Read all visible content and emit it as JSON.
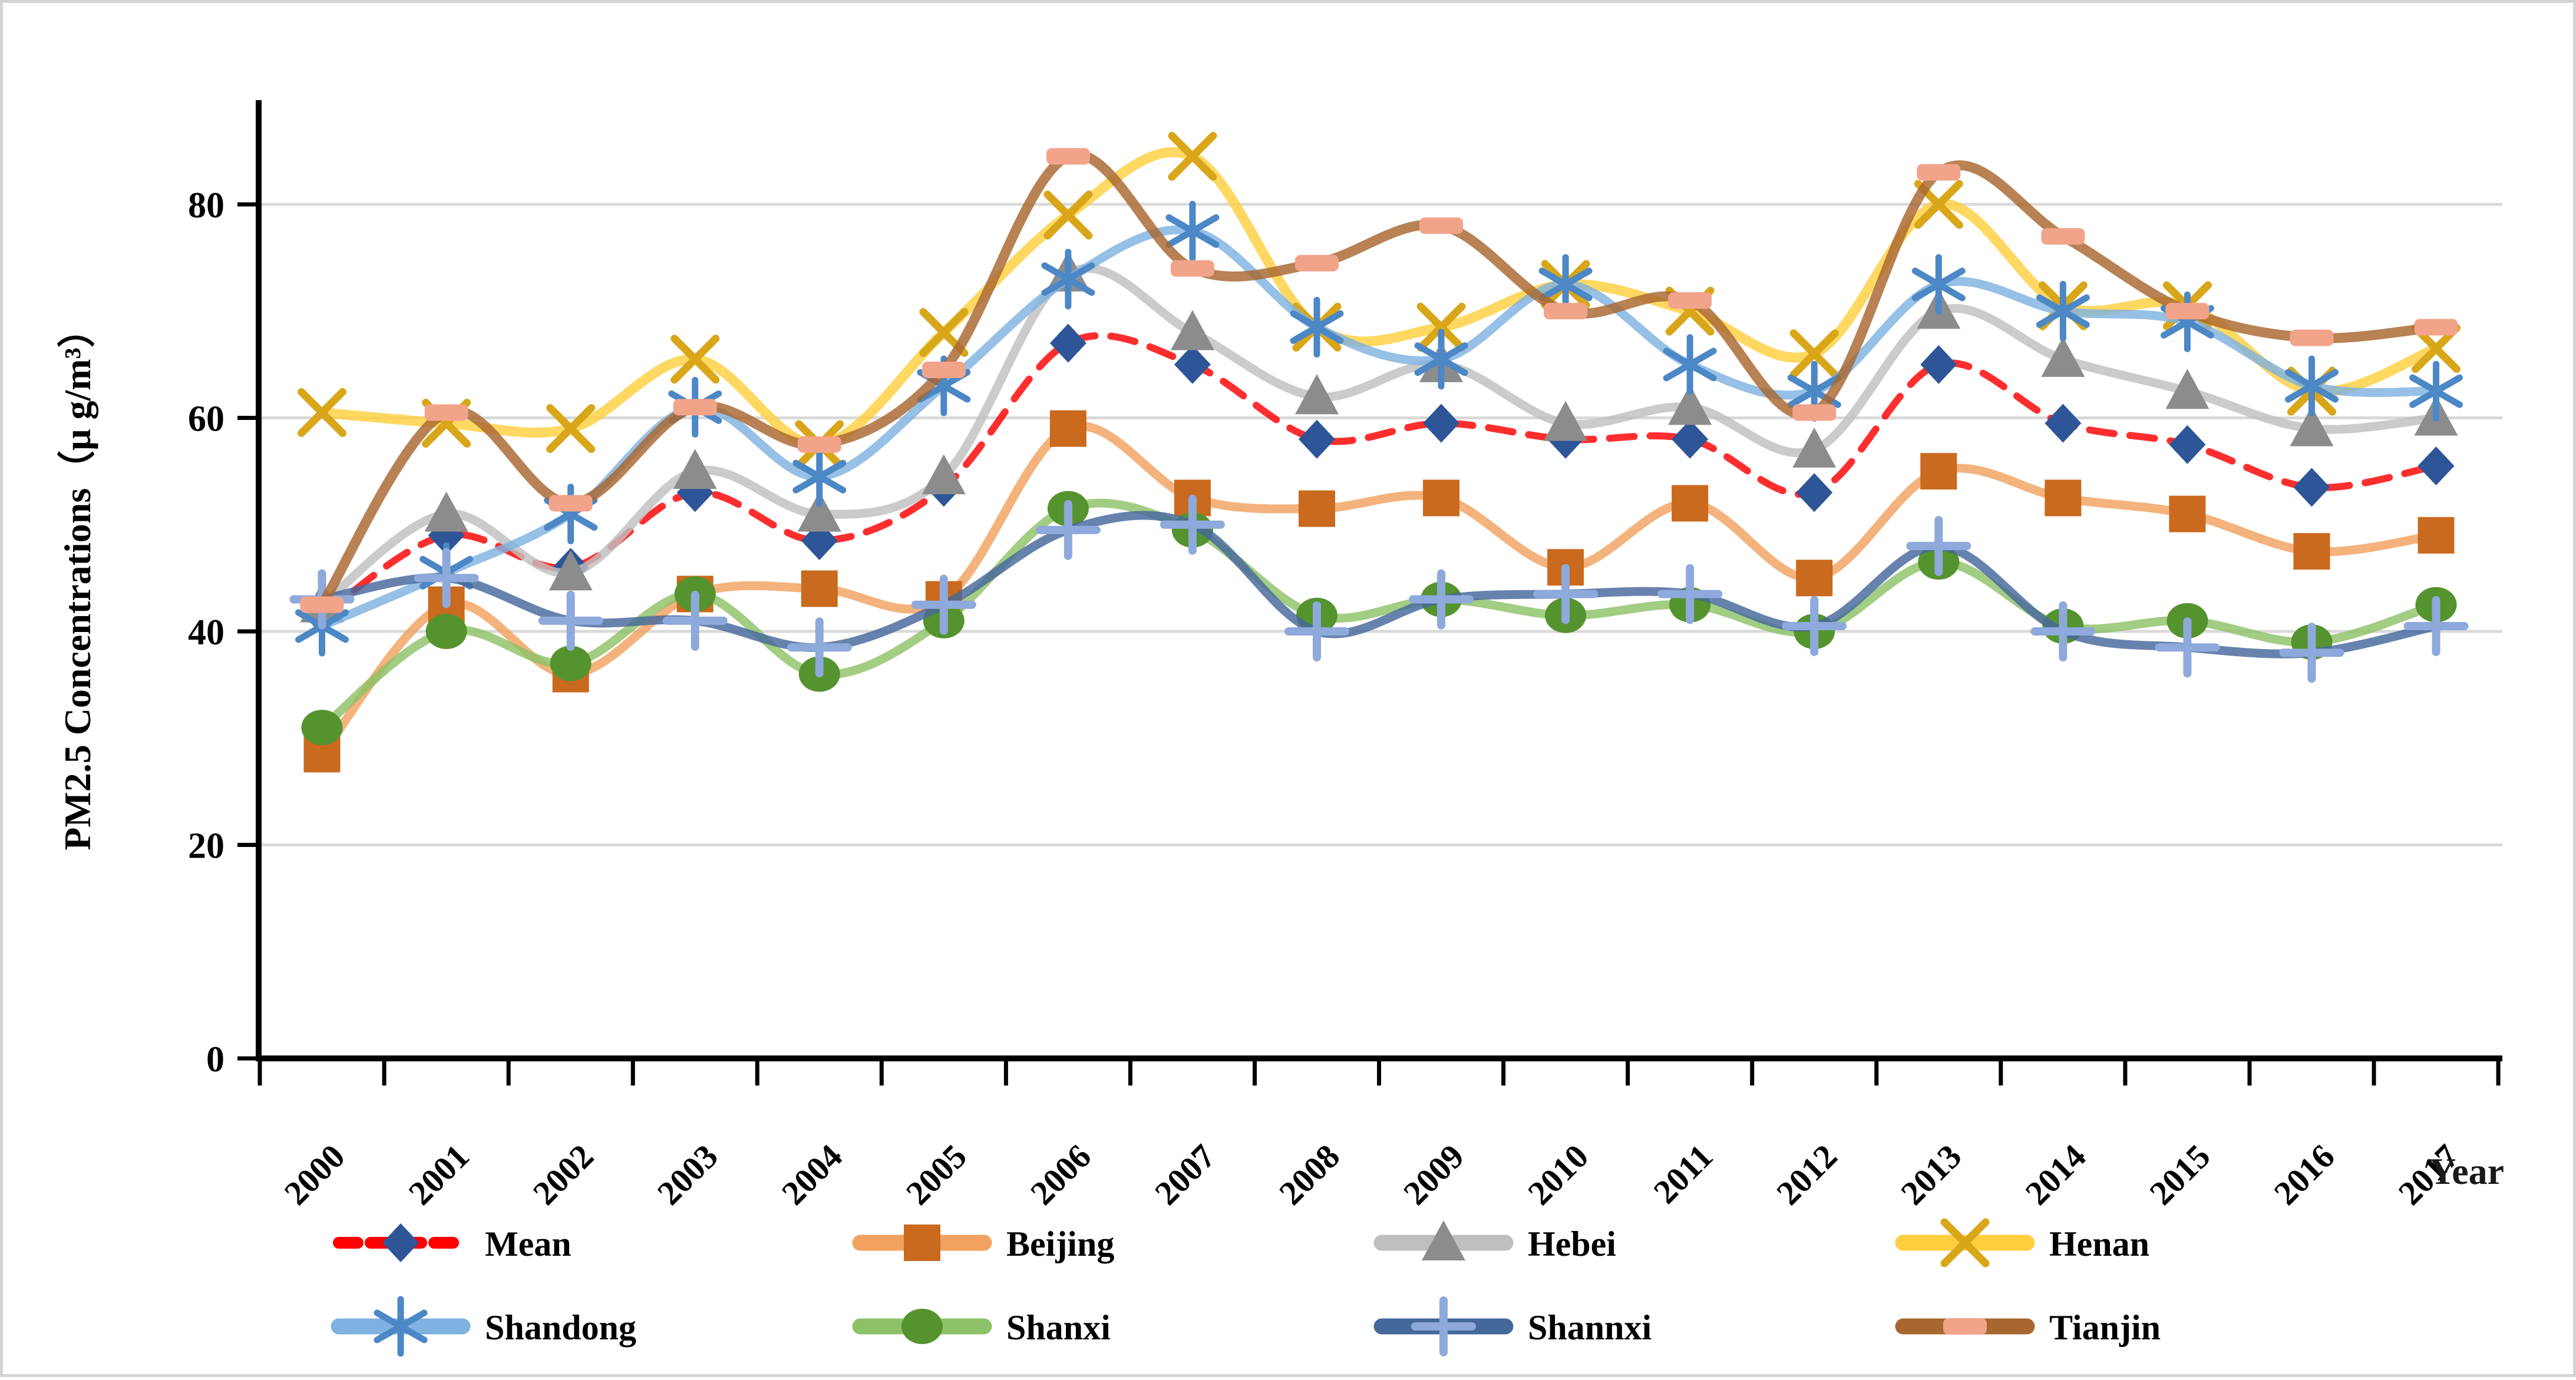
{
  "chart_data": {
    "type": "line",
    "title": "",
    "xlabel": "Year",
    "ylabel": "PM2.5 Concentrations（μ g/m³）",
    "x": [
      "2000",
      "2001",
      "2002",
      "2003",
      "2004",
      "2005",
      "2006",
      "2007",
      "2008",
      "2009",
      "2010",
      "2011",
      "2012",
      "2013",
      "2014",
      "2015",
      "2016",
      "2017"
    ],
    "ylim": [
      0,
      90
    ],
    "yticks": [
      0,
      20,
      40,
      60,
      80
    ],
    "grid": true,
    "legend_position": "bottom",
    "legend_rows": [
      [
        "Mean",
        "Beijing",
        "Hebei",
        "Henan"
      ],
      [
        "Shandong",
        "Shanxi",
        "Shannxi",
        "Tianjin"
      ]
    ],
    "style": {
      "background": "#FFFFFF",
      "gridline_color": "#D9D9D9",
      "axis_color": "#000000",
      "frame_color": "#D4D4D4",
      "mean_dash_color": "#FF0000"
    },
    "series": [
      {
        "name": "Mean",
        "marker": "diamond",
        "dashed": true,
        "line_color": "#FF0000",
        "marker_color": "#2E5597",
        "values": [
          41.5,
          49,
          46,
          53,
          48.5,
          53.5,
          67,
          65,
          58,
          59.5,
          58,
          58,
          53,
          65,
          59.5,
          57.5,
          53.5,
          55.5
        ]
      },
      {
        "name": "Beijing",
        "marker": "square",
        "dashed": false,
        "line_color": "#F2A15F",
        "marker_color": "#C96A1E",
        "values": [
          28.5,
          42.5,
          36,
          43.5,
          44,
          43,
          59,
          52.5,
          51.5,
          52.5,
          46,
          52,
          45,
          55,
          52.5,
          51,
          47.5,
          49
        ]
      },
      {
        "name": "Hebei",
        "marker": "triangle",
        "dashed": false,
        "line_color": "#BFBFBF",
        "marker_color": "#8C8C8C",
        "values": [
          42.5,
          51,
          45.5,
          55,
          51,
          54.5,
          73.5,
          68,
          62,
          65,
          59.5,
          61,
          57,
          70,
          65.5,
          62.5,
          59,
          60
        ]
      },
      {
        "name": "Henan",
        "marker": "x",
        "dashed": false,
        "line_color": "#FFCF40",
        "marker_color": "#D9A61A",
        "values": [
          60.5,
          59.5,
          59,
          65.5,
          57.5,
          68,
          79,
          84.5,
          68.5,
          68.5,
          72.5,
          70,
          66,
          80,
          70.5,
          70.5,
          62.5,
          66.5
        ]
      },
      {
        "name": "Shandong",
        "marker": "asterisk",
        "dashed": false,
        "line_color": "#7FB2E0",
        "marker_color": "#4C87C6",
        "values": [
          40.5,
          45.5,
          51,
          61,
          54.5,
          63,
          73,
          77.5,
          68.5,
          65.5,
          72.5,
          65,
          62.5,
          72.5,
          70,
          69,
          63,
          62.5
        ]
      },
      {
        "name": "Shanxi",
        "marker": "circle",
        "dashed": false,
        "line_color": "#8DC268",
        "marker_color": "#55932F",
        "values": [
          31,
          40,
          37,
          43.5,
          36,
          41,
          51.5,
          49.5,
          41.5,
          43,
          41.5,
          42.5,
          40,
          46.5,
          40.5,
          41,
          39,
          42.5
        ]
      },
      {
        "name": "Shannxi",
        "marker": "plus",
        "dashed": false,
        "line_color": "#45689B",
        "marker_color": "#8EA9DB",
        "values": [
          43,
          45,
          41,
          41,
          38.5,
          42.5,
          49.5,
          50,
          40,
          43,
          43.5,
          43.5,
          40.5,
          48,
          40,
          38.5,
          38,
          40.5
        ]
      },
      {
        "name": "Tianjin",
        "marker": "dash",
        "dashed": false,
        "line_color": "#A8672F",
        "marker_color": "#F2A48A",
        "values": [
          42.5,
          60.5,
          52,
          61,
          57.5,
          64.5,
          84.5,
          74,
          74.5,
          78,
          70,
          71,
          60.5,
          83,
          77,
          70,
          67.5,
          68.5
        ]
      }
    ]
  }
}
